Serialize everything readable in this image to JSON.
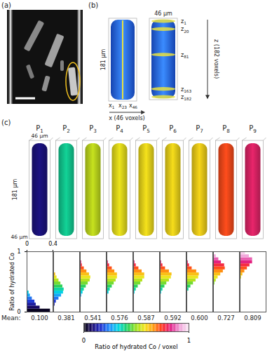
{
  "figure": {
    "a": {
      "label": "(a)"
    },
    "b": {
      "label": "(b)",
      "width": "46 μm",
      "length": "181 μm",
      "x_slices": [
        "x1",
        "x23",
        "x46"
      ],
      "x_axis": "x (46 voxels)",
      "z_slices": [
        "z1",
        "z20",
        "z81",
        "z163",
        "z182"
      ],
      "z_axis": "z (182 voxels)"
    },
    "c": {
      "label": "(c)",
      "samples": [
        "P1",
        "P2",
        "P3",
        "P4",
        "P5",
        "P6",
        "P7",
        "P8",
        "P9"
      ],
      "width_top": "46 μm",
      "length": "181 μm",
      "width_bottom": "46 μm"
    }
  },
  "chart_data": {
    "type": "bar",
    "orientation": "horizontal",
    "ylabel": "Ratio of hydrated Co",
    "ylim": [
      0,
      1
    ],
    "yticks": [
      0,
      1
    ],
    "xlim": [
      0,
      0.4
    ],
    "xticks": [
      0,
      0.4
    ],
    "bins": [
      0,
      0.05,
      0.1,
      0.15,
      0.2,
      0.25,
      0.3,
      0.35,
      0.4,
      0.45,
      0.5,
      0.55,
      0.6,
      0.65,
      0.7,
      0.75,
      0.8,
      0.85,
      0.9,
      0.95,
      1
    ],
    "mean_label": "Mean:",
    "panels": [
      {
        "values": [
          0.36,
          0.2,
          0.14,
          0.12,
          0.08,
          0.05,
          0.03,
          0.01,
          0.01,
          0,
          0,
          0,
          0,
          0,
          0,
          0,
          0,
          0,
          0,
          0
        ],
        "mean": {
          "value": 0.1,
          "label": "0.100"
        }
      },
      {
        "values": [
          0,
          0.01,
          0.02,
          0.04,
          0.08,
          0.12,
          0.15,
          0.16,
          0.14,
          0.11,
          0.08,
          0.05,
          0.03,
          0.01,
          0,
          0,
          0,
          0,
          0,
          0
        ],
        "mean": {
          "value": 0.381,
          "label": "0.381"
        }
      },
      {
        "values": [
          0,
          0,
          0,
          0,
          0.01,
          0.02,
          0.04,
          0.06,
          0.09,
          0.12,
          0.15,
          0.16,
          0.14,
          0.1,
          0.06,
          0.03,
          0.02,
          0,
          0,
          0
        ],
        "mean": {
          "value": 0.541,
          "label": "0.541"
        }
      },
      {
        "values": [
          0,
          0,
          0,
          0,
          0,
          0.01,
          0.03,
          0.05,
          0.08,
          0.11,
          0.14,
          0.16,
          0.16,
          0.12,
          0.08,
          0.04,
          0.02,
          0,
          0,
          0
        ],
        "mean": {
          "value": 0.576,
          "label": "0.576"
        }
      },
      {
        "values": [
          0,
          0,
          0,
          0,
          0,
          0.01,
          0.02,
          0.04,
          0.07,
          0.11,
          0.14,
          0.17,
          0.17,
          0.13,
          0.08,
          0.04,
          0.02,
          0,
          0,
          0
        ],
        "mean": {
          "value": 0.587,
          "label": "0.587"
        }
      },
      {
        "values": [
          0,
          0,
          0,
          0,
          0,
          0,
          0.02,
          0.04,
          0.07,
          0.1,
          0.14,
          0.17,
          0.18,
          0.14,
          0.08,
          0.04,
          0.02,
          0,
          0,
          0
        ],
        "mean": {
          "value": 0.592,
          "label": "0.592"
        }
      },
      {
        "values": [
          0,
          0,
          0,
          0,
          0,
          0,
          0.01,
          0.03,
          0.06,
          0.1,
          0.14,
          0.18,
          0.19,
          0.15,
          0.08,
          0.04,
          0.02,
          0,
          0,
          0
        ],
        "mean": {
          "value": 0.6,
          "label": "0.600"
        }
      },
      {
        "values": [
          0,
          0,
          0,
          0,
          0,
          0,
          0,
          0,
          0.01,
          0.02,
          0.04,
          0.07,
          0.11,
          0.15,
          0.18,
          0.17,
          0.12,
          0.08,
          0.04,
          0.01
        ],
        "mean": {
          "value": 0.727,
          "label": "0.727"
        }
      },
      {
        "values": [
          0,
          0,
          0,
          0,
          0,
          0,
          0,
          0,
          0,
          0,
          0.01,
          0.02,
          0.04,
          0.07,
          0.11,
          0.15,
          0.19,
          0.19,
          0.14,
          0.08
        ],
        "mean": {
          "value": 0.809,
          "label": "0.809"
        }
      }
    ],
    "colorbar": {
      "range": [
        0,
        1
      ],
      "ticks": [
        0,
        1
      ],
      "label": "Ratio of hydrated Co / voxel",
      "colors": [
        "#000000",
        "#1a0a6e",
        "#2030d0",
        "#1e90ff",
        "#00d8e0",
        "#20d060",
        "#9be020",
        "#f5e51b",
        "#ff9a10",
        "#ff3020",
        "#e0208a",
        "#f0a0d8",
        "#f8e8f4"
      ]
    }
  }
}
